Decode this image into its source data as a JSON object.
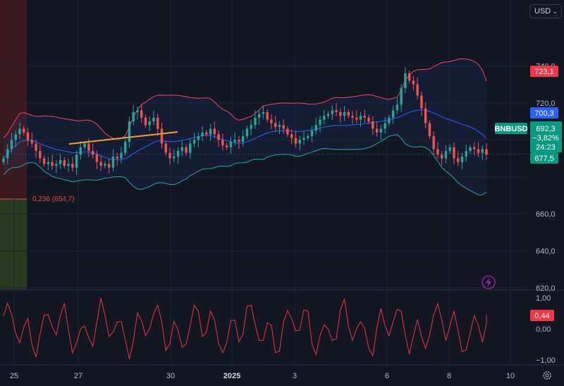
{
  "currency": {
    "value": "USD"
  },
  "colors": {
    "background": "#131722",
    "grid": "#1f2330",
    "up": "#26a69a",
    "down": "#ef5350",
    "bb_upper": "#f0445a",
    "bb_lower": "#26a69a",
    "bb_basis": "#2962ff",
    "trendline": "#f0a030",
    "fib_fill_top": "#3a1a1f",
    "fib_fill_bottom": "#283a1f",
    "oscillator": "#e8343f"
  },
  "price_labels": {
    "upper_band": "723,1",
    "basis": "700,3",
    "symbol": "BNBUSD",
    "last_price": "692,3",
    "change": "−3,82%",
    "countdown": "24:23",
    "lower_band": "677,5"
  },
  "fib_label": "0,236 (654,7)",
  "oscillator_label": "0,44",
  "icons": {
    "lightning": "lightning-icon",
    "settings": "gear-icon"
  },
  "chart_data": [
    {
      "type": "candlestick",
      "symbol": "BNBUSD",
      "currency": "USD",
      "x_ticks": [
        "25",
        "27",
        "30",
        "2025",
        "3",
        "6",
        "8",
        "10"
      ],
      "y_ticks": [
        620,
        640,
        660,
        720,
        740
      ],
      "ylim": [
        610,
        748
      ],
      "last_price": 692.3,
      "change_pct": -3.82,
      "indicators": {
        "bollinger_upper_last": 723.1,
        "bollinger_basis_last": 700.3,
        "bollinger_lower_last": 677.5,
        "fib_level": {
          "ratio": 0.236,
          "price": 654.7
        }
      },
      "closes": [
        690,
        695,
        700,
        703,
        706,
        704,
        700,
        698,
        694,
        690,
        687,
        688,
        686,
        687,
        689,
        686,
        687,
        685,
        692,
        696,
        698,
        694,
        692,
        688,
        686,
        687,
        685,
        691,
        690,
        693,
        699,
        710,
        715,
        716,
        712,
        708,
        710,
        712,
        706,
        698,
        693,
        690,
        691,
        694,
        696,
        693,
        698,
        700,
        702,
        704,
        703,
        706,
        703,
        700,
        697,
        696,
        699,
        700,
        699,
        702,
        706,
        708,
        712,
        714,
        715,
        711,
        709,
        707,
        708,
        706,
        703,
        701,
        698,
        700,
        701,
        702,
        705,
        708,
        711,
        713,
        714,
        716,
        715,
        713,
        715,
        713,
        712,
        711,
        713,
        712,
        710,
        706,
        704,
        706,
        709,
        712,
        716,
        719,
        728,
        736,
        732,
        730,
        724,
        717,
        709,
        702,
        695,
        692,
        690,
        694,
        696,
        690,
        688,
        691,
        694,
        696,
        695,
        693,
        695,
        692
      ]
    },
    {
      "type": "line",
      "name": "oscillator",
      "y_ticks": [
        1.0,
        0.0,
        -1.0
      ],
      "ylim": [
        -1.15,
        1.15
      ],
      "last": 0.44
    }
  ]
}
